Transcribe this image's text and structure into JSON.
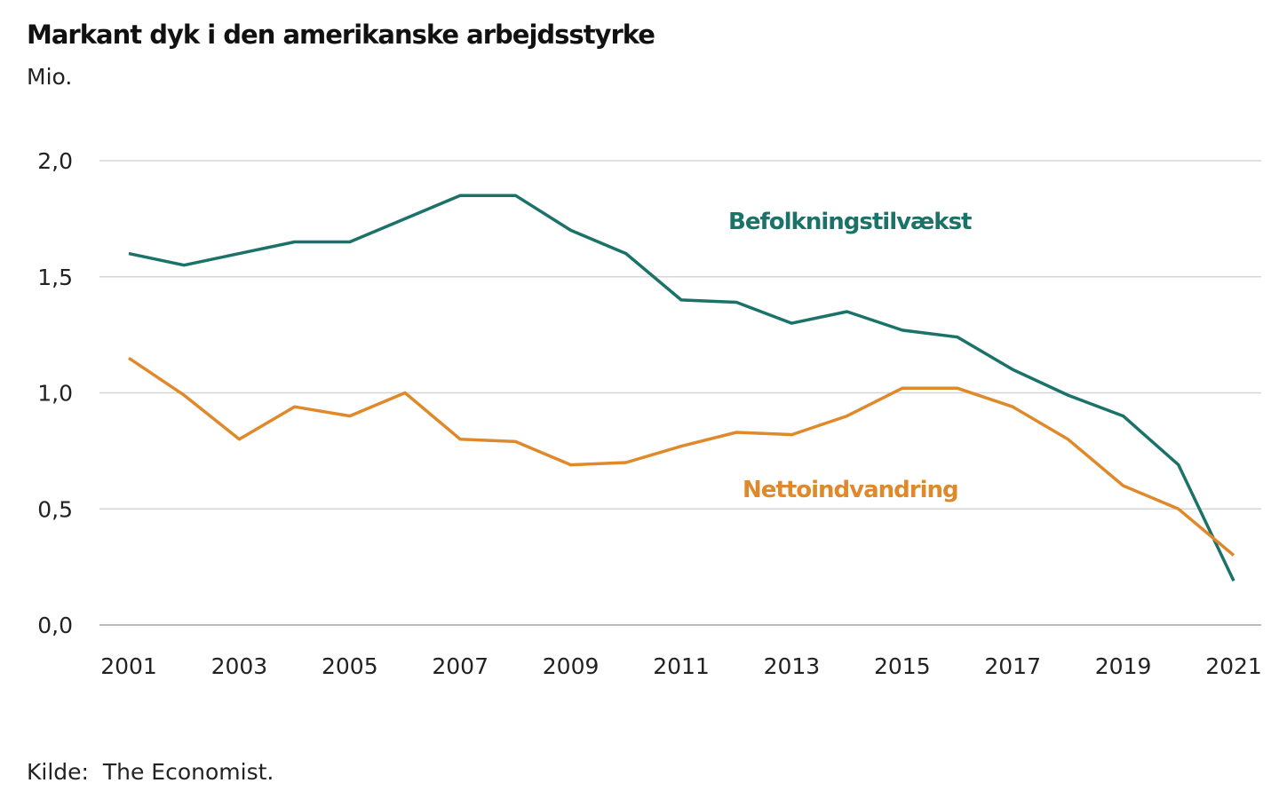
{
  "chart_data": {
    "type": "line",
    "title": "Markant dyk i den amerikanske arbejdsstyrke",
    "ylabel": "Mio.",
    "xlabel": "",
    "source": "Kilde:  The Economist.",
    "ylim": [
      0,
      2.0
    ],
    "yticks": [
      "0,0",
      "0,5",
      "1,0",
      "1,5",
      "2,0"
    ],
    "ytick_values": [
      0,
      0.5,
      1.0,
      1.5,
      2.0
    ],
    "xticks": [
      "2001",
      "2003",
      "2005",
      "2007",
      "2009",
      "2011",
      "2013",
      "2015",
      "2017",
      "2019",
      "2021"
    ],
    "grid": true,
    "x": [
      2001,
      2002,
      2003,
      2004,
      2005,
      2006,
      2007,
      2008,
      2009,
      2010,
      2011,
      2012,
      2013,
      2014,
      2015,
      2016,
      2017,
      2018,
      2019,
      2020,
      2021
    ],
    "series": [
      {
        "name": "Befolkningstilvækst",
        "color": "#1b7268",
        "values": [
          1.6,
          1.55,
          1.6,
          1.65,
          1.65,
          1.75,
          1.85,
          1.85,
          1.7,
          1.6,
          1.4,
          1.39,
          1.3,
          1.35,
          1.27,
          1.24,
          1.1,
          0.99,
          0.9,
          0.69,
          0.19
        ]
      },
      {
        "name": "Nettoindvandring",
        "color": "#e0892a",
        "values": [
          1.15,
          0.99,
          0.8,
          0.94,
          0.9,
          1.0,
          0.8,
          0.79,
          0.69,
          0.7,
          0.77,
          0.83,
          0.82,
          0.9,
          1.02,
          1.02,
          0.94,
          0.8,
          0.6,
          0.5,
          0.3
        ]
      }
    ]
  }
}
